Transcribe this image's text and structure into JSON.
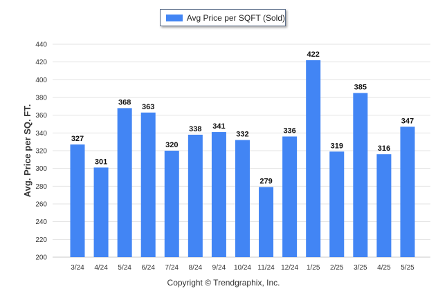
{
  "legend": {
    "label": "Avg Price per SQFT (Sold)"
  },
  "footer": {
    "copyright": "Copyright © Trendgraphix, Inc."
  },
  "colors": {
    "bar": "#4285f4",
    "grid": "#e3e3e3",
    "text": "#333333"
  },
  "chart_data": {
    "type": "bar",
    "ylabel": "Avg. Price per SQ. FT.",
    "ylim": [
      200,
      440
    ],
    "yticks": [
      200,
      220,
      240,
      260,
      280,
      300,
      320,
      340,
      360,
      380,
      400,
      420,
      440
    ],
    "grid": true,
    "legend_position": "top-center",
    "categories": [
      "3/24",
      "4/24",
      "5/24",
      "6/24",
      "7/24",
      "8/24",
      "9/24",
      "10/24",
      "11/24",
      "12/24",
      "1/25",
      "2/25",
      "3/25",
      "4/25",
      "5/25"
    ],
    "series": [
      {
        "name": "Avg Price per SQFT (Sold)",
        "values": [
          327,
          301,
          368,
          363,
          320,
          338,
          341,
          332,
          279,
          336,
          422,
          319,
          385,
          316,
          347
        ]
      }
    ]
  }
}
